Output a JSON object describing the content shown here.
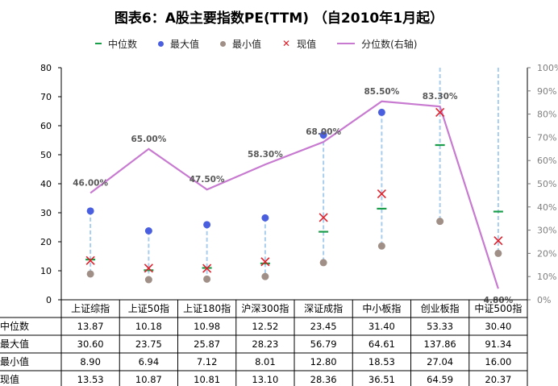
{
  "chart_data": {
    "type": "line",
    "title": "图表6：A股主要指数PE(TTM) （自2010年1月起）",
    "categories": [
      "上证综指",
      "上证50指",
      "上证180指",
      "沪深300指",
      "深证成指",
      "中小板指",
      "创业板指",
      "中证500指"
    ],
    "series": [
      {
        "name": "中位数",
        "values": [
          13.87,
          10.18,
          10.98,
          12.52,
          23.45,
          31.4,
          53.33,
          30.4
        ]
      },
      {
        "name": "最大值",
        "values": [
          30.6,
          23.75,
          25.87,
          28.23,
          56.79,
          64.61,
          137.86,
          91.34
        ]
      },
      {
        "name": "最小值",
        "values": [
          8.9,
          6.94,
          7.12,
          8.01,
          12.8,
          18.53,
          27.04,
          16.0
        ]
      },
      {
        "name": "现值",
        "values": [
          13.53,
          10.87,
          10.81,
          13.1,
          28.36,
          36.51,
          64.59,
          20.37
        ]
      },
      {
        "name": "分位数(右轴)",
        "values": [
          46.0,
          65.0,
          47.5,
          58.3,
          68.0,
          85.5,
          83.3,
          4.8
        ],
        "axis": "right"
      }
    ],
    "point_labels": [
      "46.00%",
      "65.00%",
      "47.50%",
      "58.30%",
      "68.00%",
      "85.50%",
      "83.30%",
      "4.80%"
    ],
    "ylim": [
      0,
      80
    ],
    "yticks": [
      "0",
      "10",
      "20",
      "30",
      "40",
      "50",
      "60",
      "70",
      "80"
    ],
    "y2lim": [
      0,
      100
    ],
    "y2ticks": [
      "0%",
      "10%",
      "20%",
      "30%",
      "40%",
      "50%",
      "60%",
      "70%",
      "80%",
      "90%",
      "100%"
    ],
    "legend_position": "top",
    "data_table": {
      "rows": [
        {
          "label": "中位数",
          "values": [
            "13.87",
            "10.18",
            "10.98",
            "12.52",
            "23.45",
            "31.40",
            "53.33",
            "30.40"
          ]
        },
        {
          "label": "最大值",
          "values": [
            "30.60",
            "23.75",
            "25.87",
            "28.23",
            "56.79",
            "64.61",
            "137.86",
            "91.34"
          ]
        },
        {
          "label": "最小值",
          "values": [
            "8.90",
            "6.94",
            "7.12",
            "8.01",
            "12.80",
            "18.53",
            "27.04",
            "16.00"
          ]
        },
        {
          "label": "现值",
          "values": [
            "13.53",
            "10.87",
            "10.81",
            "13.10",
            "28.36",
            "36.51",
            "64.59",
            "20.37"
          ]
        }
      ]
    },
    "colors": {
      "median": "#1a9e4a",
      "max": "#4a5fe0",
      "min": "#a08f86",
      "current": "#e0202a",
      "percentile": "#c77ad0",
      "range": "#a9cdee"
    }
  }
}
